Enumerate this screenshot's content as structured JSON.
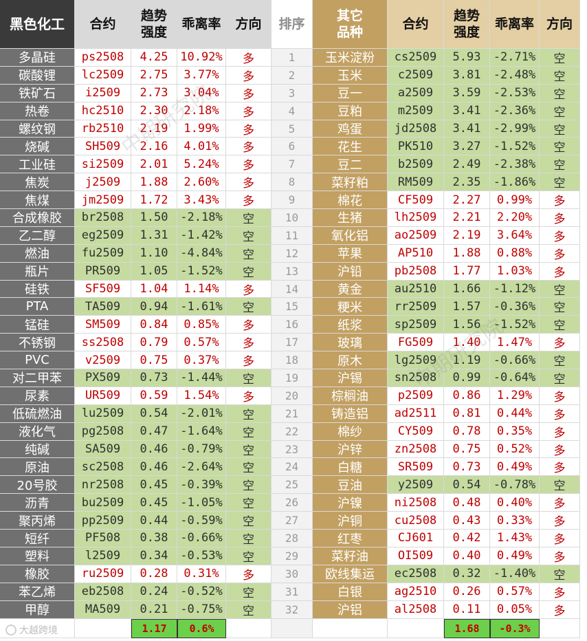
{
  "left_header": {
    "section": "黑色化工",
    "contract": "合约",
    "strength": "趋势\n强度",
    "deviation": "乖离率",
    "direction": "方向"
  },
  "rank_header": "排序",
  "right_header": {
    "section": "其它\n品种",
    "contract": "合约",
    "strength": "趋势\n强度",
    "deviation": "乖离率",
    "direction": "方向"
  },
  "left_rows": [
    {
      "name": "多晶硅",
      "contract": "ps2508",
      "strength": "4.25",
      "deviation": "10.92%",
      "direction": "多"
    },
    {
      "name": "碳酸锂",
      "contract": "lc2509",
      "strength": "2.75",
      "deviation": "3.77%",
      "direction": "多"
    },
    {
      "name": "铁矿石",
      "contract": "i2509",
      "strength": "2.73",
      "deviation": "3.04%",
      "direction": "多"
    },
    {
      "name": "热卷",
      "contract": "hc2510",
      "strength": "2.30",
      "deviation": "2.18%",
      "direction": "多"
    },
    {
      "name": "螺纹钢",
      "contract": "rb2510",
      "strength": "2.19",
      "deviation": "1.99%",
      "direction": "多"
    },
    {
      "name": "烧碱",
      "contract": "SH509",
      "strength": "2.16",
      "deviation": "4.01%",
      "direction": "多"
    },
    {
      "name": "工业硅",
      "contract": "si2509",
      "strength": "2.01",
      "deviation": "5.24%",
      "direction": "多"
    },
    {
      "name": "焦炭",
      "contract": "j2509",
      "strength": "1.88",
      "deviation": "2.60%",
      "direction": "多"
    },
    {
      "name": "焦煤",
      "contract": "jm2509",
      "strength": "1.72",
      "deviation": "3.43%",
      "direction": "多"
    },
    {
      "name": "合成橡胶",
      "contract": "br2508",
      "strength": "1.50",
      "deviation": "-2.18%",
      "direction": "空"
    },
    {
      "name": "乙二醇",
      "contract": "eg2509",
      "strength": "1.31",
      "deviation": "-1.42%",
      "direction": "空"
    },
    {
      "name": "燃油",
      "contract": "fu2509",
      "strength": "1.10",
      "deviation": "-4.84%",
      "direction": "空"
    },
    {
      "name": "瓶片",
      "contract": "PR509",
      "strength": "1.05",
      "deviation": "-1.52%",
      "direction": "空"
    },
    {
      "name": "硅铁",
      "contract": "SF509",
      "strength": "1.04",
      "deviation": "1.14%",
      "direction": "多"
    },
    {
      "name": "PTA",
      "contract": "TA509",
      "strength": "0.94",
      "deviation": "-1.61%",
      "direction": "空"
    },
    {
      "name": "锰硅",
      "contract": "SM509",
      "strength": "0.84",
      "deviation": "0.85%",
      "direction": "多"
    },
    {
      "name": "不锈钢",
      "contract": "ss2508",
      "strength": "0.79",
      "deviation": "0.57%",
      "direction": "多"
    },
    {
      "name": "PVC",
      "contract": "v2509",
      "strength": "0.75",
      "deviation": "0.37%",
      "direction": "多"
    },
    {
      "name": "对二甲苯",
      "contract": "PX509",
      "strength": "0.73",
      "deviation": "-1.44%",
      "direction": "空"
    },
    {
      "name": "尿素",
      "contract": "UR509",
      "strength": "0.59",
      "deviation": "1.54%",
      "direction": "多"
    },
    {
      "name": "低硫燃油",
      "contract": "lu2509",
      "strength": "0.54",
      "deviation": "-2.01%",
      "direction": "空"
    },
    {
      "name": "液化气",
      "contract": "pg2508",
      "strength": "0.47",
      "deviation": "-1.64%",
      "direction": "空"
    },
    {
      "name": "纯碱",
      "contract": "SA509",
      "strength": "0.46",
      "deviation": "-0.79%",
      "direction": "空"
    },
    {
      "name": "原油",
      "contract": "sc2508",
      "strength": "0.46",
      "deviation": "-2.64%",
      "direction": "空"
    },
    {
      "name": "20号胶",
      "contract": "nr2508",
      "strength": "0.45",
      "deviation": "-0.39%",
      "direction": "空"
    },
    {
      "name": "沥青",
      "contract": "bu2509",
      "strength": "0.45",
      "deviation": "-1.05%",
      "direction": "空"
    },
    {
      "name": "聚丙烯",
      "contract": "pp2509",
      "strength": "0.44",
      "deviation": "-0.59%",
      "direction": "空"
    },
    {
      "name": "短纤",
      "contract": "PF508",
      "strength": "0.38",
      "deviation": "-0.66%",
      "direction": "空"
    },
    {
      "name": "塑料",
      "contract": "l2509",
      "strength": "0.34",
      "deviation": "-0.53%",
      "direction": "空"
    },
    {
      "name": "橡胶",
      "contract": "ru2509",
      "strength": "0.28",
      "deviation": "0.31%",
      "direction": "多"
    },
    {
      "name": "苯乙烯",
      "contract": "eb2508",
      "strength": "0.24",
      "deviation": "-0.52%",
      "direction": "空"
    },
    {
      "name": "甲醇",
      "contract": "MA509",
      "strength": "0.21",
      "deviation": "-0.75%",
      "direction": "空"
    }
  ],
  "right_rows": [
    {
      "name": "玉米淀粉",
      "contract": "cs2509",
      "strength": "5.93",
      "deviation": "-2.71%",
      "direction": "空"
    },
    {
      "name": "玉米",
      "contract": "c2509",
      "strength": "3.81",
      "deviation": "-2.48%",
      "direction": "空"
    },
    {
      "name": "豆一",
      "contract": "a2509",
      "strength": "3.59",
      "deviation": "-2.53%",
      "direction": "空"
    },
    {
      "name": "豆粕",
      "contract": "m2509",
      "strength": "3.41",
      "deviation": "-2.36%",
      "direction": "空"
    },
    {
      "name": "鸡蛋",
      "contract": "jd2508",
      "strength": "3.41",
      "deviation": "-2.99%",
      "direction": "空"
    },
    {
      "name": "花生",
      "contract": "PK510",
      "strength": "3.27",
      "deviation": "-1.52%",
      "direction": "空"
    },
    {
      "name": "豆二",
      "contract": "b2509",
      "strength": "2.49",
      "deviation": "-2.38%",
      "direction": "空"
    },
    {
      "name": "菜籽粕",
      "contract": "RM509",
      "strength": "2.35",
      "deviation": "-1.86%",
      "direction": "空"
    },
    {
      "name": "棉花",
      "contract": "CF509",
      "strength": "2.27",
      "deviation": "0.99%",
      "direction": "多"
    },
    {
      "name": "生猪",
      "contract": "lh2509",
      "strength": "2.21",
      "deviation": "2.20%",
      "direction": "多"
    },
    {
      "name": "氧化铝",
      "contract": "ao2509",
      "strength": "2.19",
      "deviation": "3.64%",
      "direction": "多"
    },
    {
      "name": "苹果",
      "contract": "AP510",
      "strength": "1.88",
      "deviation": "0.88%",
      "direction": "多"
    },
    {
      "name": "沪铅",
      "contract": "pb2508",
      "strength": "1.77",
      "deviation": "1.03%",
      "direction": "多"
    },
    {
      "name": "黄金",
      "contract": "au2510",
      "strength": "1.66",
      "deviation": "-1.12%",
      "direction": "空"
    },
    {
      "name": "粳米",
      "contract": "rr2509",
      "strength": "1.57",
      "deviation": "-0.36%",
      "direction": "空"
    },
    {
      "name": "纸浆",
      "contract": "sp2509",
      "strength": "1.56",
      "deviation": "-1.52%",
      "direction": "空"
    },
    {
      "name": "玻璃",
      "contract": "FG509",
      "strength": "1.40",
      "deviation": "1.47%",
      "direction": "多"
    },
    {
      "name": "原木",
      "contract": "lg2509",
      "strength": "1.19",
      "deviation": "-0.66%",
      "direction": "空"
    },
    {
      "name": "沪锡",
      "contract": "sn2508",
      "strength": "0.99",
      "deviation": "-0.64%",
      "direction": "空"
    },
    {
      "name": "棕榈油",
      "contract": "p2509",
      "strength": "0.86",
      "deviation": "1.29%",
      "direction": "多"
    },
    {
      "name": "铸造铝",
      "contract": "ad2511",
      "strength": "0.81",
      "deviation": "0.44%",
      "direction": "多"
    },
    {
      "name": "棉纱",
      "contract": "CY509",
      "strength": "0.78",
      "deviation": "0.35%",
      "direction": "多"
    },
    {
      "name": "沪锌",
      "contract": "zn2508",
      "strength": "0.75",
      "deviation": "0.52%",
      "direction": "多"
    },
    {
      "name": "白糖",
      "contract": "SR509",
      "strength": "0.73",
      "deviation": "0.49%",
      "direction": "多"
    },
    {
      "name": "豆油",
      "contract": "y2509",
      "strength": "0.54",
      "deviation": "-0.78%",
      "direction": "空"
    },
    {
      "name": "沪镍",
      "contract": "ni2508",
      "strength": "0.48",
      "deviation": "0.40%",
      "direction": "多"
    },
    {
      "name": "沪铜",
      "contract": "cu2508",
      "strength": "0.43",
      "deviation": "0.33%",
      "direction": "多"
    },
    {
      "name": "红枣",
      "contract": "CJ601",
      "strength": "0.42",
      "deviation": "1.43%",
      "direction": "多"
    },
    {
      "name": "菜籽油",
      "contract": "OI509",
      "strength": "0.40",
      "deviation": "0.49%",
      "direction": "多"
    },
    {
      "name": "欧线集运",
      "contract": "ec2508",
      "strength": "0.32",
      "deviation": "-1.40%",
      "direction": "空"
    },
    {
      "name": "白银",
      "contract": "ag2510",
      "strength": "0.26",
      "deviation": "0.57%",
      "direction": "多"
    },
    {
      "name": "沪铝",
      "contract": "al2508",
      "strength": "0.11",
      "deviation": "0.05%",
      "direction": "多"
    }
  ],
  "ranks": [
    "1",
    "2",
    "3",
    "4",
    "5",
    "6",
    "7",
    "8",
    "9",
    "10",
    "11",
    "12",
    "13",
    "14",
    "15",
    "16",
    "17",
    "18",
    "19",
    "20",
    "21",
    "22",
    "23",
    "24",
    "25",
    "26",
    "27",
    "28",
    "29",
    "30",
    "31",
    "32"
  ],
  "footer": {
    "left_strength": "1.17",
    "left_deviation": "0.6%",
    "right_strength": "1.68",
    "right_deviation": "-0.3%",
    "logo_text": "大越跨境"
  },
  "watermarks": [
    "中期研究院",
    "中期研究院"
  ],
  "colors": {
    "long_text": "#c00000",
    "short_bg": "#c5dba0",
    "left_name_bg": "#707070",
    "right_name_bg": "#c2a062",
    "sum_bg": "#6cd04a"
  }
}
